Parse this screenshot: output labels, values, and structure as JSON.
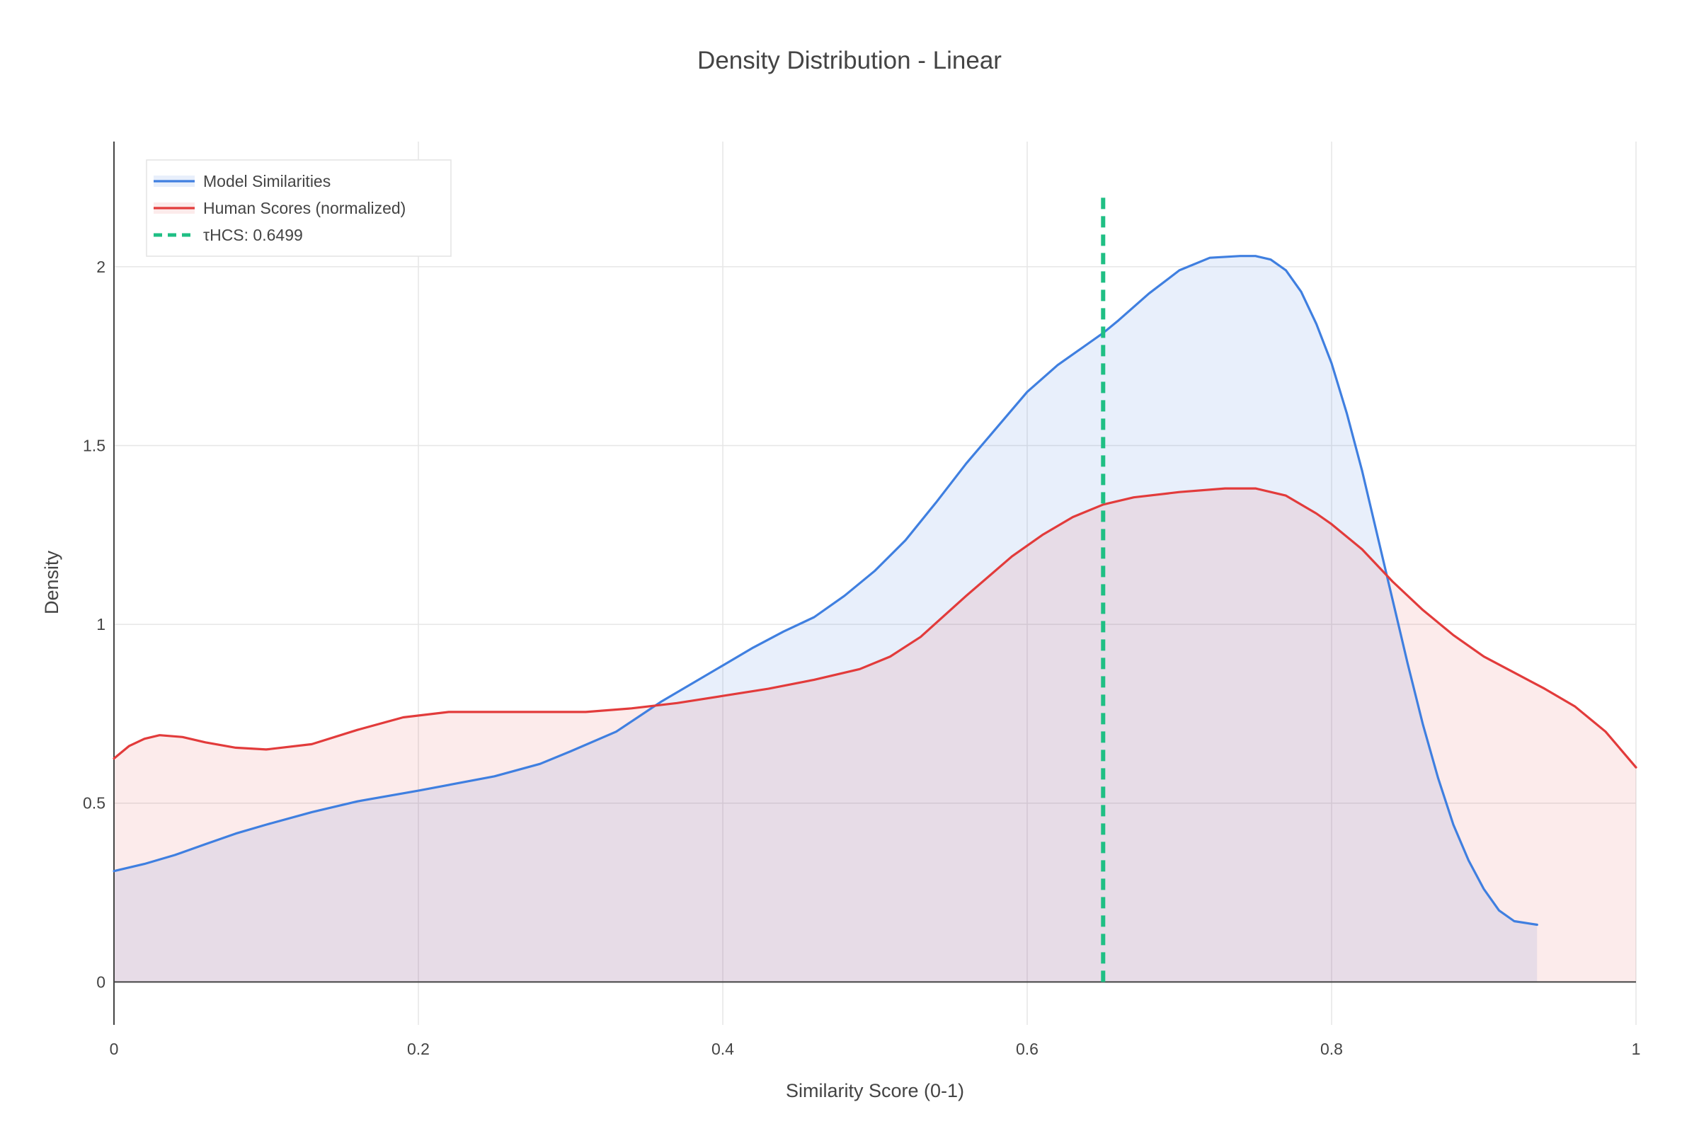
{
  "chart_data": {
    "type": "area",
    "title": "Density Distribution - Linear",
    "xlabel": "Similarity Score (0-1)",
    "ylabel": "Density",
    "xlim": [
      0,
      1
    ],
    "ylim": [
      -0.12,
      2.35
    ],
    "x_ticks": [
      0,
      0.2,
      0.4,
      0.6,
      0.8,
      1
    ],
    "x_tick_labels": [
      "0",
      "0.2",
      "0.4",
      "0.6",
      "0.8",
      "1"
    ],
    "y_ticks": [
      0,
      0.5,
      1,
      1.5,
      2
    ],
    "y_tick_labels": [
      "0",
      "0.5",
      "1",
      "1.5",
      "2"
    ],
    "grid": true,
    "legend_position": "top-left",
    "series": [
      {
        "name": "Model Similarities",
        "color": "#3f7fe0",
        "fill": "rgba(63,127,224,0.12)",
        "x": [
          0,
          0.02,
          0.04,
          0.06,
          0.08,
          0.1,
          0.13,
          0.16,
          0.2,
          0.25,
          0.28,
          0.3,
          0.33,
          0.36,
          0.4,
          0.42,
          0.44,
          0.46,
          0.48,
          0.5,
          0.52,
          0.54,
          0.56,
          0.58,
          0.6,
          0.62,
          0.64,
          0.65,
          0.66,
          0.68,
          0.7,
          0.72,
          0.74,
          0.75,
          0.76,
          0.77,
          0.78,
          0.79,
          0.8,
          0.81,
          0.82,
          0.83,
          0.84,
          0.85,
          0.86,
          0.87,
          0.88,
          0.89,
          0.9,
          0.91,
          0.92,
          0.935
        ],
        "y": [
          0.31,
          0.33,
          0.355,
          0.385,
          0.415,
          0.44,
          0.475,
          0.505,
          0.535,
          0.575,
          0.61,
          0.645,
          0.7,
          0.785,
          0.885,
          0.935,
          0.98,
          1.02,
          1.08,
          1.15,
          1.235,
          1.34,
          1.45,
          1.55,
          1.65,
          1.725,
          1.785,
          1.815,
          1.85,
          1.925,
          1.99,
          2.025,
          2.03,
          2.03,
          2.02,
          1.99,
          1.93,
          1.84,
          1.73,
          1.59,
          1.43,
          1.25,
          1.07,
          0.89,
          0.72,
          0.57,
          0.44,
          0.34,
          0.26,
          0.2,
          0.17,
          0.16
        ]
      },
      {
        "name": "Human Scores (normalized)",
        "color": "#e23b3b",
        "fill": "rgba(226,59,59,0.10)",
        "x": [
          0,
          0.01,
          0.02,
          0.03,
          0.045,
          0.06,
          0.08,
          0.1,
          0.13,
          0.16,
          0.19,
          0.22,
          0.25,
          0.28,
          0.31,
          0.34,
          0.37,
          0.4,
          0.43,
          0.46,
          0.49,
          0.51,
          0.53,
          0.56,
          0.59,
          0.61,
          0.63,
          0.65,
          0.67,
          0.7,
          0.73,
          0.75,
          0.77,
          0.79,
          0.8,
          0.82,
          0.84,
          0.86,
          0.88,
          0.9,
          0.92,
          0.94,
          0.96,
          0.98,
          0.99,
          1
        ],
        "y": [
          0.625,
          0.66,
          0.68,
          0.69,
          0.685,
          0.67,
          0.655,
          0.65,
          0.665,
          0.705,
          0.74,
          0.755,
          0.755,
          0.755,
          0.755,
          0.765,
          0.78,
          0.8,
          0.82,
          0.845,
          0.875,
          0.91,
          0.965,
          1.08,
          1.19,
          1.25,
          1.3,
          1.335,
          1.355,
          1.37,
          1.38,
          1.38,
          1.36,
          1.31,
          1.28,
          1.21,
          1.12,
          1.04,
          0.97,
          0.91,
          0.865,
          0.82,
          0.77,
          0.7,
          0.65,
          0.6
        ]
      }
    ],
    "reference_line": {
      "name": "τHCS: 0.6499",
      "x": 0.6499,
      "y_range": [
        0,
        2.2
      ],
      "color": "#1fbf84"
    }
  }
}
